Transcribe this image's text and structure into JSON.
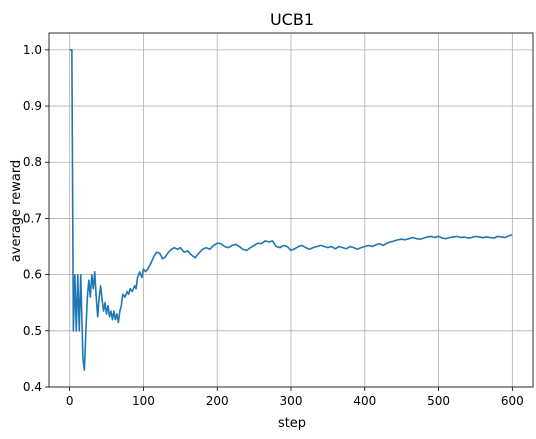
{
  "chart_data": {
    "type": "line",
    "title": "UCB1",
    "xlabel": "step",
    "ylabel": "average reward",
    "xlim": [
      -28,
      628
    ],
    "ylim": [
      0.4,
      1.03
    ],
    "xticks": [
      0,
      100,
      200,
      300,
      400,
      500,
      600
    ],
    "xtick_labels": [
      "0",
      "100",
      "200",
      "300",
      "400",
      "500",
      "600"
    ],
    "yticks": [
      0.4,
      0.5,
      0.6,
      0.7,
      0.8,
      0.9,
      1.0
    ],
    "ytick_labels": [
      "0.4",
      "0.5",
      "0.6",
      "0.7",
      "0.8",
      "0.9",
      "1.0"
    ],
    "grid": true,
    "line_color": "#1f77b4",
    "series": [
      {
        "x": [
          0,
          3,
          5,
          7,
          9,
          11,
          13,
          15,
          18,
          20,
          22,
          24,
          26,
          28,
          30,
          32,
          34,
          36,
          38,
          40,
          42,
          44,
          46,
          48,
          50,
          52,
          54,
          56,
          58,
          60,
          62,
          64,
          66,
          68,
          70,
          72,
          75,
          78,
          80,
          82,
          85,
          88,
          90,
          92,
          95,
          98,
          100,
          103,
          106,
          110,
          114,
          118,
          122,
          126,
          130,
          134,
          138,
          142,
          146,
          150,
          155,
          160,
          165,
          170,
          175,
          180,
          185,
          190,
          195,
          200,
          205,
          210,
          215,
          220,
          225,
          230,
          235,
          240,
          245,
          250,
          255,
          260,
          265,
          270,
          275,
          280,
          285,
          290,
          295,
          300,
          305,
          310,
          315,
          320,
          325,
          330,
          335,
          340,
          345,
          350,
          355,
          360,
          365,
          370,
          375,
          380,
          385,
          390,
          395,
          400,
          405,
          410,
          415,
          420,
          425,
          430,
          435,
          440,
          445,
          450,
          455,
          460,
          465,
          470,
          475,
          480,
          485,
          490,
          495,
          500,
          505,
          510,
          515,
          520,
          525,
          530,
          535,
          540,
          545,
          550,
          555,
          560,
          565,
          570,
          575,
          580,
          585,
          590,
          595,
          600
        ],
        "y": [
          1.0,
          1.0,
          0.5,
          0.6,
          0.5,
          0.6,
          0.5,
          0.6,
          0.45,
          0.43,
          0.5,
          0.56,
          0.59,
          0.56,
          0.6,
          0.575,
          0.605,
          0.56,
          0.525,
          0.56,
          0.58,
          0.555,
          0.535,
          0.55,
          0.53,
          0.545,
          0.525,
          0.535,
          0.52,
          0.535,
          0.52,
          0.53,
          0.515,
          0.535,
          0.545,
          0.565,
          0.56,
          0.57,
          0.565,
          0.575,
          0.57,
          0.58,
          0.575,
          0.595,
          0.605,
          0.595,
          0.61,
          0.605,
          0.61,
          0.62,
          0.632,
          0.64,
          0.638,
          0.628,
          0.632,
          0.64,
          0.645,
          0.648,
          0.645,
          0.648,
          0.64,
          0.642,
          0.635,
          0.63,
          0.638,
          0.645,
          0.648,
          0.645,
          0.652,
          0.656,
          0.655,
          0.65,
          0.648,
          0.652,
          0.654,
          0.65,
          0.645,
          0.643,
          0.648,
          0.652,
          0.656,
          0.655,
          0.66,
          0.658,
          0.66,
          0.65,
          0.648,
          0.652,
          0.65,
          0.643,
          0.646,
          0.65,
          0.652,
          0.648,
          0.645,
          0.648,
          0.65,
          0.652,
          0.65,
          0.648,
          0.65,
          0.646,
          0.65,
          0.648,
          0.646,
          0.65,
          0.648,
          0.645,
          0.648,
          0.65,
          0.652,
          0.65,
          0.653,
          0.655,
          0.652,
          0.656,
          0.658,
          0.66,
          0.662,
          0.663,
          0.662,
          0.664,
          0.666,
          0.664,
          0.663,
          0.665,
          0.667,
          0.668,
          0.666,
          0.668,
          0.665,
          0.664,
          0.666,
          0.667,
          0.668,
          0.666,
          0.667,
          0.665,
          0.666,
          0.668,
          0.667,
          0.666,
          0.667,
          0.666,
          0.665,
          0.668,
          0.667,
          0.666,
          0.669,
          0.671
        ]
      }
    ]
  }
}
